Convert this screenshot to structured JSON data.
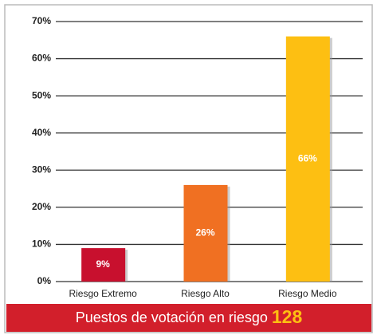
{
  "chart_data": {
    "type": "bar",
    "categories": [
      "Riesgo Extremo",
      "Riesgo Alto",
      "Riesgo Medio"
    ],
    "values": [
      9,
      26,
      66
    ],
    "value_labels": [
      "9%",
      "26%",
      "66%"
    ],
    "colors": [
      "#c8102e",
      "#f07022",
      "#fdbf12"
    ],
    "ylim": [
      0,
      70
    ],
    "yticks": [
      {
        "value": 0,
        "label": "0%"
      },
      {
        "value": 10,
        "label": "10%"
      },
      {
        "value": 20,
        "label": "20%"
      },
      {
        "value": 30,
        "label": "30%"
      },
      {
        "value": 40,
        "label": "40%"
      },
      {
        "value": 50,
        "label": "50%"
      },
      {
        "value": 60,
        "label": "60%"
      },
      {
        "value": 70,
        "label": "70%"
      }
    ],
    "grid": true
  },
  "footer": {
    "text": "Puestos de votación en riesgo",
    "count": 128
  }
}
